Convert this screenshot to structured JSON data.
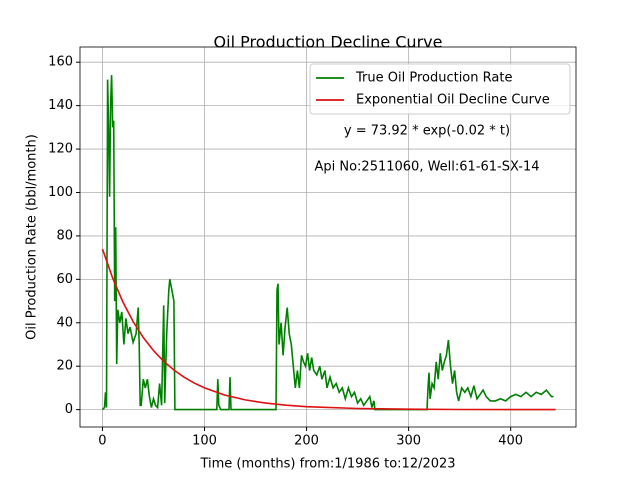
{
  "chart_data": {
    "type": "line",
    "title": "Oil Production Decline Curve",
    "xlabel": "Time (months) from:1/1986 to:12/2023",
    "ylabel": "Oil Production Rate (bbl/month)",
    "annotations": [
      "y = 73.92 * exp(-0.02 * t)",
      "Api No:2511060, Well:61-61-SX-14"
    ],
    "xlim": [
      -22,
      464
    ],
    "xticks": [
      0,
      100,
      200,
      300,
      400
    ],
    "ylim": [
      -8,
      167
    ],
    "yticks": [
      0,
      20,
      40,
      60,
      80,
      100,
      120,
      140,
      160
    ],
    "grid": true,
    "legend": "upper right",
    "series": [
      {
        "name": "True Oil Production Rate",
        "color": "#008000",
        "x": [
          0,
          2,
          3,
          4,
          5,
          6,
          7,
          8,
          9,
          10,
          11,
          12,
          13,
          14,
          15,
          17,
          19,
          21,
          23,
          25,
          27,
          30,
          33,
          35,
          36,
          37,
          38,
          40,
          42,
          44,
          46,
          48,
          50,
          52,
          54,
          56,
          58,
          60,
          61,
          63,
          65,
          66,
          68,
          70,
          71,
          80,
          100,
          112,
          113,
          114,
          116,
          124,
          125,
          126,
          150,
          170,
          171,
          172,
          173,
          175,
          177,
          179,
          181,
          183,
          185,
          187,
          189,
          191,
          193,
          195,
          197,
          199,
          201,
          203,
          205,
          207,
          210,
          213,
          215,
          218,
          220,
          223,
          226,
          229,
          232,
          235,
          238,
          241,
          244,
          247,
          250,
          253,
          256,
          259,
          262,
          264,
          266,
          267,
          290,
          318,
          319,
          320,
          321,
          323,
          325,
          327,
          329,
          331,
          333,
          335,
          337,
          339,
          341,
          343,
          345,
          347,
          349,
          352,
          355,
          358,
          361,
          364,
          367,
          370,
          373,
          376,
          380,
          385,
          390,
          395,
          400,
          405,
          410,
          415,
          420,
          425,
          430,
          435,
          440,
          442
        ],
        "values": [
          0,
          1,
          8,
          1,
          152,
          130,
          98,
          140,
          154,
          130,
          133,
          50,
          84,
          21,
          46,
          40,
          45,
          30,
          42,
          35,
          38,
          31,
          35,
          47,
          30,
          2,
          2,
          14,
          10,
          14,
          6,
          1,
          5,
          2,
          1,
          12,
          2,
          48,
          3,
          35,
          55,
          60,
          55,
          50,
          0,
          0,
          0,
          0,
          14,
          2,
          0,
          0,
          15,
          0,
          0,
          0,
          55,
          58,
          30,
          40,
          25,
          38,
          47,
          35,
          30,
          20,
          10,
          18,
          10,
          25,
          22,
          20,
          26,
          18,
          24,
          18,
          16,
          20,
          14,
          18,
          10,
          15,
          10,
          12,
          8,
          10,
          5,
          10,
          6,
          8,
          3,
          5,
          2,
          4,
          6,
          1,
          4,
          0,
          0,
          0,
          10,
          17,
          5,
          12,
          10,
          22,
          14,
          26,
          18,
          22,
          25,
          32,
          20,
          12,
          18,
          8,
          4,
          10,
          8,
          10,
          6,
          11,
          5,
          7,
          9,
          6,
          4,
          4,
          5,
          4,
          6,
          7,
          6,
          8,
          6,
          8,
          7,
          9,
          6,
          6
        ]
      },
      {
        "name": "Exponential Oil Decline Curve",
        "color": "#dd1111",
        "x": [
          0,
          10,
          20,
          30,
          40,
          50,
          60,
          70,
          80,
          90,
          100,
          120,
          140,
          160,
          180,
          200,
          250,
          300,
          350,
          400,
          444
        ],
        "values": [
          73.92,
          60.52,
          49.55,
          40.57,
          33.22,
          27.19,
          22.26,
          18.23,
          14.92,
          12.22,
          10.0,
          6.71,
          4.5,
          3.01,
          2.02,
          1.35,
          0.5,
          0.18,
          0.07,
          0.02,
          0.01
        ]
      }
    ]
  }
}
